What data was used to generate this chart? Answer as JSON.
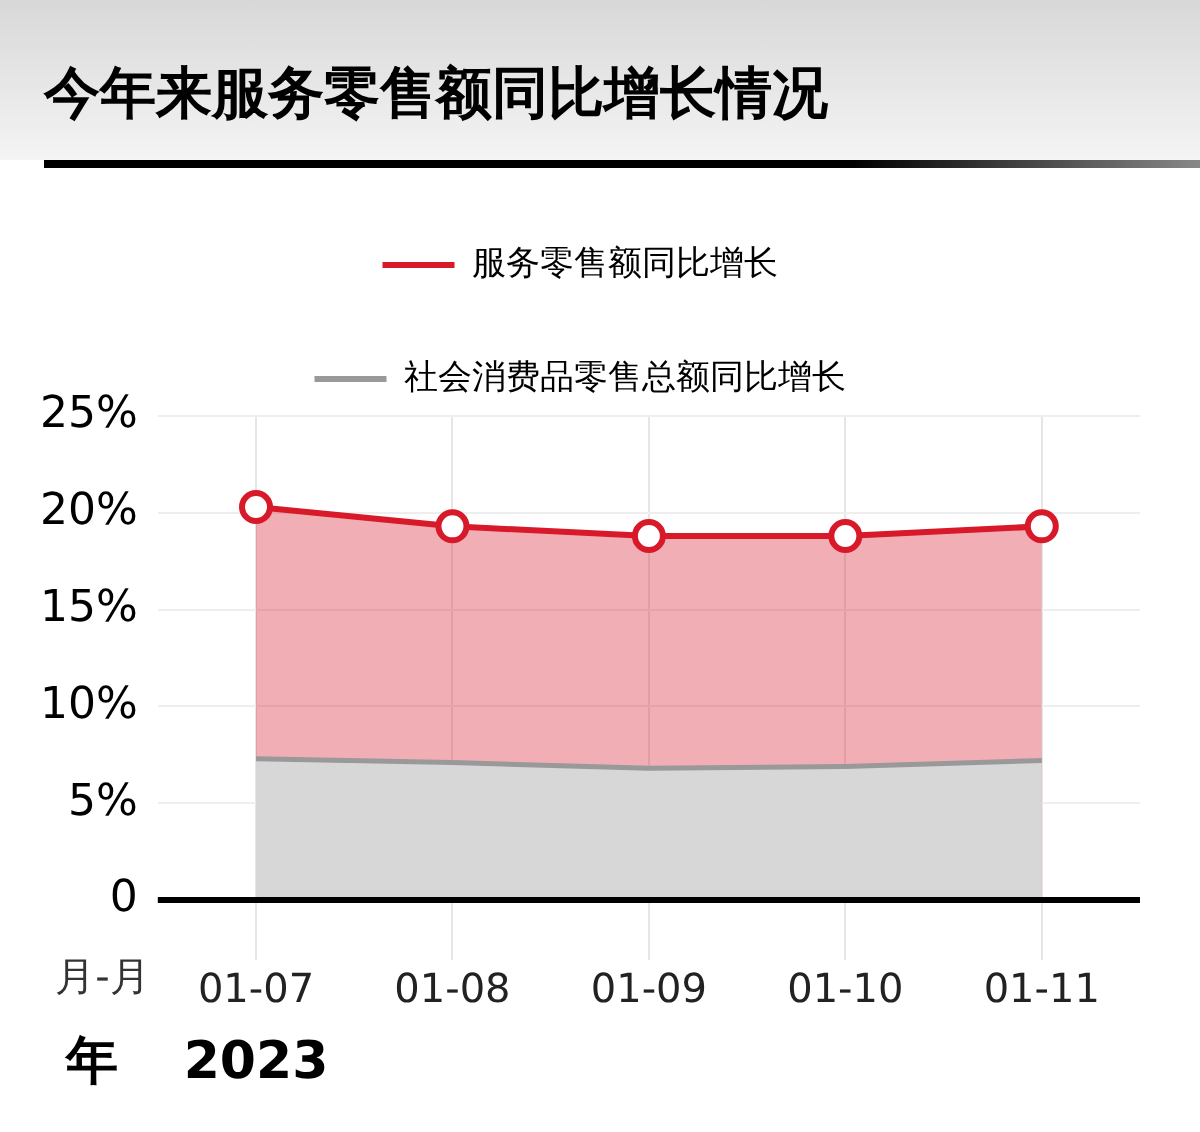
{
  "chart_data": {
    "type": "area",
    "title": "今年来服务零售额同比增长情况",
    "xlabel": "月-月",
    "annotations": [
      "年",
      "2023"
    ],
    "categories": [
      "01-07",
      "01-08",
      "01-09",
      "01-10",
      "01-11"
    ],
    "series": [
      {
        "name": "服务零售额同比增长",
        "color": "#d7192a",
        "values": [
          20.3,
          19.3,
          18.8,
          18.8,
          19.3
        ],
        "marker": "circle"
      },
      {
        "name": "社会消费品零售总额同比增长",
        "color": "#999999",
        "values": [
          7.3,
          7.1,
          6.8,
          6.9,
          7.2
        ],
        "marker": "none"
      }
    ],
    "ylim": [
      0,
      25
    ],
    "yticks": [
      0,
      {
        "value": 5,
        "label": "5%"
      },
      {
        "value": 10,
        "label": "10%"
      },
      {
        "value": 15,
        "label": "15%"
      },
      {
        "value": 20,
        "label": "20%"
      },
      {
        "value": 25,
        "label": "25%"
      }
    ],
    "grid": true,
    "legend": "top"
  }
}
